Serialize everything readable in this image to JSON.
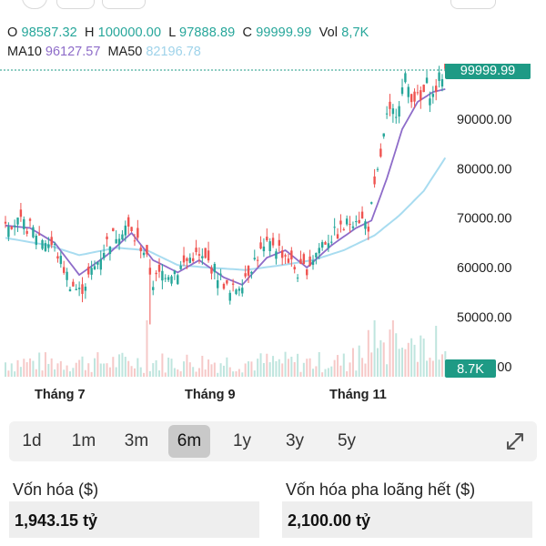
{
  "ohlc": {
    "o_label": "O",
    "o_value": "98587.32",
    "h_label": "H",
    "h_value": "100000.00",
    "l_label": "L",
    "l_value": "97888.89",
    "c_label": "C",
    "c_value": "99999.99",
    "vol_label": "Vol",
    "vol_value": "8,7K"
  },
  "ma": {
    "ma10_label": "MA10",
    "ma10_value": "96127.57",
    "ma50_label": "MA50",
    "ma50_value": "82196.78"
  },
  "chart_data": {
    "type": "candlestick",
    "y_ticks": [
      "90000.00",
      "80000.00",
      "70000.00",
      "60000.00",
      "50000.00",
      "40000.00"
    ],
    "ylim": [
      45000,
      104000
    ],
    "x_labels": [
      "Tháng 7",
      "Tháng 9",
      "Tháng 11"
    ],
    "last_price_label": "99999.99",
    "last_volume_label": "8.7K",
    "close_path": [
      {
        "x": 0,
        "y": 69800
      },
      {
        "x": 8,
        "y": 68000
      },
      {
        "x": 16,
        "y": 64000
      },
      {
        "x": 21,
        "y": 57000
      },
      {
        "x": 24,
        "y": 55000
      },
      {
        "x": 29,
        "y": 60000
      },
      {
        "x": 33,
        "y": 65000
      },
      {
        "x": 39,
        "y": 68500
      },
      {
        "x": 45,
        "y": 63500
      },
      {
        "x": 48,
        "y": 57000
      },
      {
        "x": 51,
        "y": 59000
      },
      {
        "x": 56,
        "y": 59500
      },
      {
        "x": 61,
        "y": 62500
      },
      {
        "x": 66,
        "y": 61000
      },
      {
        "x": 71,
        "y": 57000
      },
      {
        "x": 73,
        "y": 54500
      },
      {
        "x": 77,
        "y": 57500
      },
      {
        "x": 82,
        "y": 62500
      },
      {
        "x": 87,
        "y": 65000
      },
      {
        "x": 91,
        "y": 62500
      },
      {
        "x": 95,
        "y": 59000
      },
      {
        "x": 98,
        "y": 60000
      },
      {
        "x": 103,
        "y": 65000
      },
      {
        "x": 109,
        "y": 67500
      },
      {
        "x": 114,
        "y": 70500
      },
      {
        "x": 118,
        "y": 68500
      },
      {
        "x": 121,
        "y": 79000
      },
      {
        "x": 124,
        "y": 90000
      },
      {
        "x": 127,
        "y": 92000
      },
      {
        "x": 130,
        "y": 98000
      },
      {
        "x": 132,
        "y": 95000
      },
      {
        "x": 135,
        "y": 93500
      },
      {
        "x": 137,
        "y": 97000
      },
      {
        "x": 139,
        "y": 94500
      },
      {
        "x": 141,
        "y": 98000
      },
      {
        "x": 143,
        "y": 100000
      }
    ],
    "ma10_path": [
      {
        "x": 0,
        "y": 68500
      },
      {
        "x": 8,
        "y": 68000
      },
      {
        "x": 16,
        "y": 65000
      },
      {
        "x": 24,
        "y": 58500
      },
      {
        "x": 33,
        "y": 62500
      },
      {
        "x": 41,
        "y": 67000
      },
      {
        "x": 48,
        "y": 61500
      },
      {
        "x": 56,
        "y": 59000
      },
      {
        "x": 63,
        "y": 61500
      },
      {
        "x": 71,
        "y": 58000
      },
      {
        "x": 77,
        "y": 56500
      },
      {
        "x": 85,
        "y": 62000
      },
      {
        "x": 91,
        "y": 63500
      },
      {
        "x": 98,
        "y": 60000
      },
      {
        "x": 106,
        "y": 64500
      },
      {
        "x": 114,
        "y": 68000
      },
      {
        "x": 119,
        "y": 69500
      },
      {
        "x": 124,
        "y": 78000
      },
      {
        "x": 129,
        "y": 88000
      },
      {
        "x": 134,
        "y": 93500
      },
      {
        "x": 139,
        "y": 95500
      },
      {
        "x": 143,
        "y": 96100
      }
    ],
    "ma50_path": [
      {
        "x": 0,
        "y": 66000
      },
      {
        "x": 14,
        "y": 64500
      },
      {
        "x": 24,
        "y": 62500
      },
      {
        "x": 36,
        "y": 64000
      },
      {
        "x": 46,
        "y": 63500
      },
      {
        "x": 56,
        "y": 60500
      },
      {
        "x": 66,
        "y": 60000
      },
      {
        "x": 78,
        "y": 59500
      },
      {
        "x": 90,
        "y": 60500
      },
      {
        "x": 100,
        "y": 61500
      },
      {
        "x": 110,
        "y": 63500
      },
      {
        "x": 120,
        "y": 66500
      },
      {
        "x": 128,
        "y": 70500
      },
      {
        "x": 136,
        "y": 75500
      },
      {
        "x": 143,
        "y": 82200
      }
    ],
    "colors": {
      "up": "#26a69a",
      "down": "#ef5350",
      "ma10": "#8e6cc9",
      "ma50": "#a8dcf0",
      "badge": "#1e9a85"
    }
  },
  "ranges": [
    "1d",
    "1m",
    "3m",
    "6m",
    "1y",
    "3y",
    "5y"
  ],
  "active_range": "6m",
  "expand_icon": "expand-icon",
  "stats": {
    "market_cap_label": "Vốn hóa ($)",
    "market_cap_value": "1,943.15 tỷ",
    "fdv_label": "Vốn hóa pha loãng hết ($)",
    "fdv_value": "2,100.00 tỷ"
  }
}
